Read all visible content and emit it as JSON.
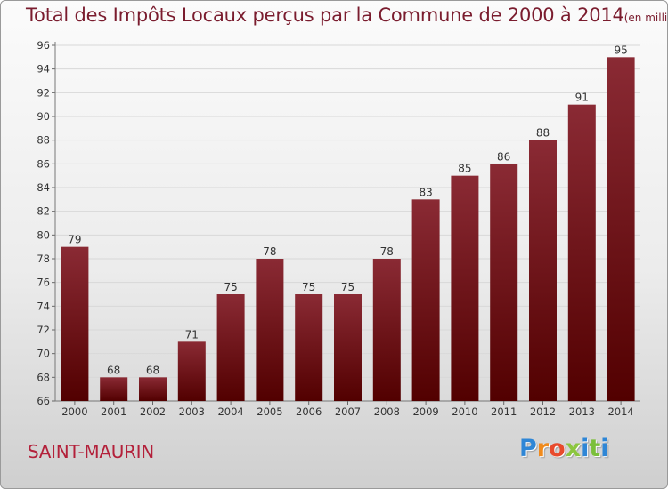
{
  "title": "Total des Impôts Locaux perçus par la Commune de 2000 à 2014",
  "unit_label": "(en milliers d'€)",
  "commune": "SAINT-MAURIN",
  "logo": {
    "letters": [
      "P",
      "r",
      "o",
      "x",
      "i",
      "t",
      "i"
    ],
    "text": "Proxiti"
  },
  "colors": {
    "bar_top": "#8a2a34",
    "bar_bottom": "#520000",
    "title": "#7a1c2e",
    "commune": "#b3203a"
  },
  "chart_data": {
    "type": "bar",
    "title": "Total des Impôts Locaux perçus par la Commune de 2000 à 2014",
    "xlabel": "",
    "ylabel": "",
    "categories": [
      "2000",
      "2001",
      "2002",
      "2003",
      "2004",
      "2005",
      "2006",
      "2007",
      "2008",
      "2009",
      "2010",
      "2011",
      "2012",
      "2013",
      "2014"
    ],
    "values": [
      79,
      68,
      68,
      71,
      75,
      78,
      75,
      75,
      78,
      83,
      85,
      86,
      88,
      91,
      95
    ],
    "ylim": [
      66,
      96
    ],
    "yticks": [
      66,
      68,
      70,
      72,
      74,
      76,
      78,
      80,
      82,
      84,
      86,
      88,
      90,
      92,
      94,
      96
    ],
    "grid": true
  }
}
